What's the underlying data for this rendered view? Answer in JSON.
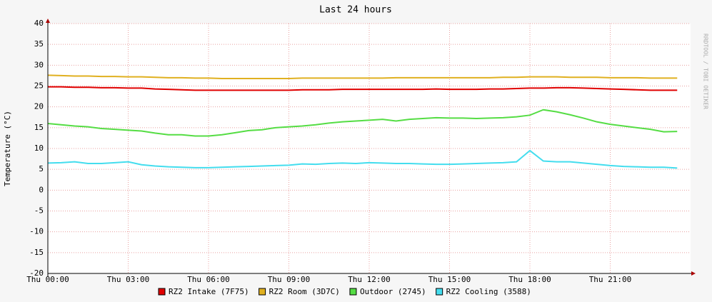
{
  "chart_data": {
    "type": "line",
    "title": "Last 24 hours",
    "y_label": "Temperature (°C)",
    "watermark": "RRDTOOL / TOBI OETIKER",
    "x": [
      0,
      0.5,
      1,
      1.5,
      2,
      2.5,
      3,
      3.5,
      4,
      4.5,
      5,
      5.5,
      6,
      6.5,
      7,
      7.5,
      8,
      8.5,
      9,
      9.5,
      10,
      10.5,
      11,
      11.5,
      12,
      12.5,
      13,
      13.5,
      14,
      14.5,
      15,
      15.5,
      16,
      16.5,
      17,
      17.5,
      18,
      18.5,
      19,
      19.5,
      20,
      20.5,
      21,
      21.5,
      22,
      22.5,
      23,
      23.5
    ],
    "xlim": [
      0,
      24
    ],
    "xticks": [
      {
        "value": 0,
        "label": "Thu 00:00"
      },
      {
        "value": 3,
        "label": "Thu 03:00"
      },
      {
        "value": 6,
        "label": "Thu 06:00"
      },
      {
        "value": 9,
        "label": "Thu 09:00"
      },
      {
        "value": 12,
        "label": "Thu 12:00"
      },
      {
        "value": 15,
        "label": "Thu 15:00"
      },
      {
        "value": 18,
        "label": "Thu 18:00"
      },
      {
        "value": 21,
        "label": "Thu 21:00"
      }
    ],
    "ylim": [
      -20,
      40
    ],
    "yticks": [
      -20,
      -15,
      -10,
      -5,
      0,
      5,
      10,
      15,
      20,
      25,
      30,
      35,
      40
    ],
    "grid": true,
    "series": [
      {
        "name": "RZ2 Intake (7F75)",
        "color": "#e00000",
        "values": [
          24.8,
          24.8,
          24.7,
          24.7,
          24.6,
          24.6,
          24.5,
          24.5,
          24.3,
          24.2,
          24.1,
          24.0,
          24.0,
          24.0,
          24.0,
          24.0,
          24.0,
          24.0,
          24.0,
          24.1,
          24.1,
          24.1,
          24.2,
          24.2,
          24.2,
          24.2,
          24.2,
          24.2,
          24.2,
          24.3,
          24.2,
          24.2,
          24.2,
          24.3,
          24.3,
          24.4,
          24.5,
          24.5,
          24.6,
          24.6,
          24.5,
          24.4,
          24.3,
          24.2,
          24.1,
          24.0,
          24.0,
          24.0
        ]
      },
      {
        "name": "RZ2 Room (3D7C)",
        "color": "#e0b020",
        "values": [
          27.6,
          27.5,
          27.4,
          27.4,
          27.3,
          27.3,
          27.2,
          27.2,
          27.1,
          27.0,
          27.0,
          26.9,
          26.9,
          26.8,
          26.8,
          26.8,
          26.8,
          26.8,
          26.8,
          26.9,
          26.9,
          26.9,
          26.9,
          26.9,
          26.9,
          26.9,
          27.0,
          27.0,
          27.0,
          27.0,
          27.0,
          27.0,
          27.0,
          27.0,
          27.1,
          27.1,
          27.2,
          27.2,
          27.2,
          27.1,
          27.1,
          27.1,
          27.0,
          27.0,
          27.0,
          26.9,
          26.9,
          26.9
        ]
      },
      {
        "name": "Outdoor (2745)",
        "color": "#55dd44",
        "values": [
          16,
          15.7,
          15.4,
          15.2,
          14.8,
          14.6,
          14.4,
          14.2,
          13.7,
          13.3,
          13.3,
          13,
          13,
          13.3,
          13.8,
          14.3,
          14.5,
          15,
          15.2,
          15.4,
          15.7,
          16.1,
          16.4,
          16.6,
          16.8,
          17,
          16.6,
          17,
          17.2,
          17.4,
          17.3,
          17.3,
          17.2,
          17.3,
          17.4,
          17.6,
          18,
          19.3,
          18.8,
          18.1,
          17.3,
          16.4,
          15.8,
          15.4,
          15,
          14.6,
          14,
          14.1
        ]
      },
      {
        "name": "RZ2 Cooling (3588)",
        "color": "#44ddee",
        "values": [
          6.5,
          6.6,
          6.8,
          6.4,
          6.4,
          6.6,
          6.8,
          6.1,
          5.8,
          5.6,
          5.5,
          5.4,
          5.4,
          5.5,
          5.6,
          5.7,
          5.8,
          5.9,
          6.0,
          6.3,
          6.2,
          6.4,
          6.5,
          6.4,
          6.6,
          6.5,
          6.4,
          6.4,
          6.3,
          6.2,
          6.2,
          6.3,
          6.4,
          6.5,
          6.6,
          6.8,
          9.5,
          7.0,
          6.8,
          6.8,
          6.5,
          6.2,
          5.9,
          5.7,
          5.6,
          5.5,
          5.5,
          5.3
        ]
      }
    ]
  }
}
